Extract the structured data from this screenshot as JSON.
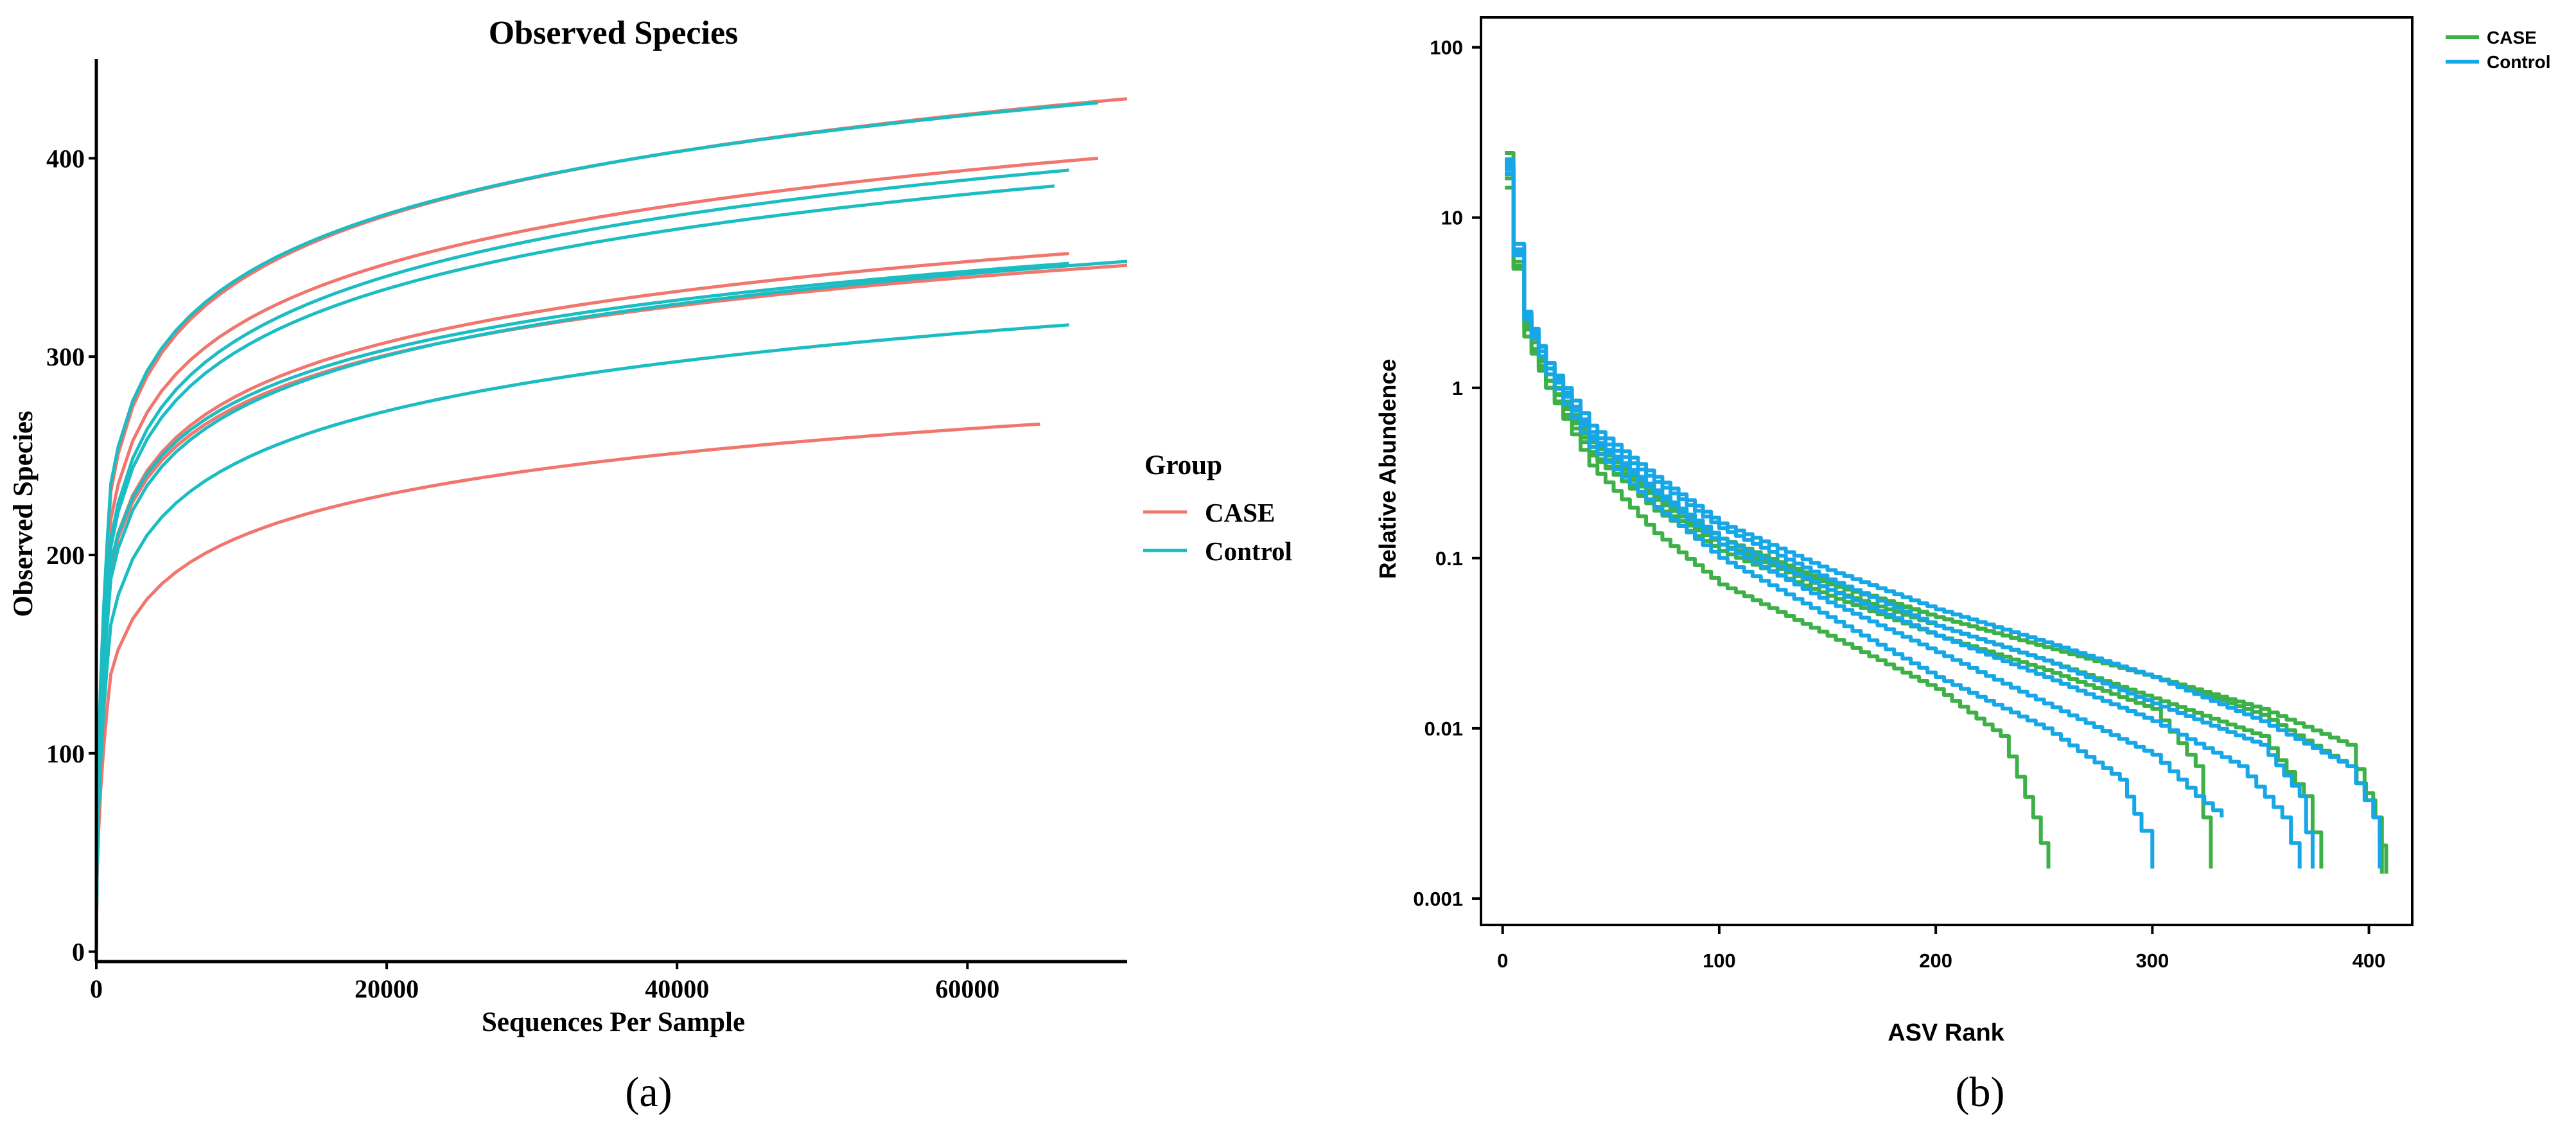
{
  "colors": {
    "case_a": "#F0766E",
    "control_a": "#1CBDC2",
    "case_b": "#3DB048",
    "control_b": "#17A7E6",
    "axis": "#000000"
  },
  "panel_labels": {
    "a": "(a)",
    "b": "(b)"
  },
  "chart_data": [
    {
      "id": "a",
      "type": "line",
      "title": "Observed Species",
      "xlabel": "Sequences Per Sample",
      "ylabel": "Observed Species",
      "xlim": [
        0,
        71000
      ],
      "ylim": [
        -5,
        450
      ],
      "xticks": [
        0,
        20000,
        40000,
        60000
      ],
      "xtick_labels": [
        "0",
        "20000",
        "40000",
        "60000"
      ],
      "yticks": [
        0,
        100,
        200,
        300,
        400
      ],
      "ytick_labels": [
        "0",
        "100",
        "200",
        "300",
        "400"
      ],
      "legend": {
        "title": "Group",
        "position": "right",
        "entries": [
          "CASE",
          "Control"
        ]
      },
      "series": [
        {
          "name": "CASE",
          "final_x": 71000,
          "final_y": 430,
          "y_at_1000": 232
        },
        {
          "name": "CASE",
          "final_x": 69000,
          "final_y": 400,
          "y_at_1000": 218
        },
        {
          "name": "CASE",
          "final_x": 67000,
          "final_y": 352,
          "y_at_1000": 196
        },
        {
          "name": "CASE",
          "final_x": 71000,
          "final_y": 346,
          "y_at_1000": 194
        },
        {
          "name": "CASE",
          "final_x": 65000,
          "final_y": 266,
          "y_at_1000": 140
        },
        {
          "name": "Control",
          "final_x": 69000,
          "final_y": 428,
          "y_at_1000": 236
        },
        {
          "name": "Control",
          "final_x": 67000,
          "final_y": 394,
          "y_at_1000": 208
        },
        {
          "name": "Control",
          "final_x": 66000,
          "final_y": 386,
          "y_at_1000": 204
        },
        {
          "name": "Control",
          "final_x": 67000,
          "final_y": 347,
          "y_at_1000": 196
        },
        {
          "name": "Control",
          "final_x": 71000,
          "final_y": 348,
          "y_at_1000": 188
        },
        {
          "name": "Control",
          "final_x": 67000,
          "final_y": 316,
          "y_at_1000": 165
        }
      ]
    },
    {
      "id": "b",
      "type": "line",
      "title": "",
      "xlabel": "ASV Rank",
      "ylabel": "Relative Abundence",
      "yscale": "log",
      "xlim": [
        -10,
        420
      ],
      "ylim": [
        0.0007,
        150
      ],
      "xticks": [
        0,
        100,
        200,
        300,
        400
      ],
      "xtick_labels": [
        "0",
        "100",
        "200",
        "300",
        "400"
      ],
      "yticks": [
        0.001,
        0.01,
        0.1,
        1,
        10,
        100
      ],
      "ytick_labels": [
        "0.001",
        "0.01",
        "0.1",
        "1",
        "10",
        "100"
      ],
      "legend": {
        "title": "",
        "position": "top-right",
        "entries": [
          "CASE",
          "Control"
        ]
      },
      "series": [
        {
          "name": "CASE",
          "points": [
            [
              1,
              24
            ],
            [
              5,
              6
            ],
            [
              10,
              2.2
            ],
            [
              20,
              1.0
            ],
            [
              40,
              0.35
            ],
            [
              70,
              0.14
            ],
            [
              100,
              0.07
            ],
            [
              150,
              0.035
            ],
            [
              200,
              0.017
            ],
            [
              230,
              0.009
            ],
            [
              245,
              0.003
            ],
            [
              252,
              0.0015
            ]
          ]
        },
        {
          "name": "CASE",
          "points": [
            [
              1,
              20
            ],
            [
              5,
              5
            ],
            [
              10,
              2.0
            ],
            [
              20,
              1.1
            ],
            [
              40,
              0.42
            ],
            [
              70,
              0.19
            ],
            [
              100,
              0.11
            ],
            [
              150,
              0.06
            ],
            [
              200,
              0.035
            ],
            [
              250,
              0.022
            ],
            [
              300,
              0.013
            ],
            [
              320,
              0.006
            ],
            [
              327,
              0.0015
            ]
          ]
        },
        {
          "name": "CASE",
          "points": [
            [
              1,
              18
            ],
            [
              5,
              5.5
            ],
            [
              10,
              2.4
            ],
            [
              20,
              1.1
            ],
            [
              40,
              0.45
            ],
            [
              70,
              0.22
            ],
            [
              100,
              0.12
            ],
            [
              150,
              0.065
            ],
            [
              200,
              0.04
            ],
            [
              250,
              0.025
            ],
            [
              300,
              0.015
            ],
            [
              350,
              0.009
            ],
            [
              370,
              0.004
            ],
            [
              378,
              0.0015
            ]
          ]
        },
        {
          "name": "CASE",
          "points": [
            [
              1,
              17
            ],
            [
              5,
              5.2
            ],
            [
              10,
              2.3
            ],
            [
              20,
              1.2
            ],
            [
              40,
              0.48
            ],
            [
              70,
              0.23
            ],
            [
              100,
              0.13
            ],
            [
              150,
              0.072
            ],
            [
              200,
              0.045
            ],
            [
              250,
              0.03
            ],
            [
              300,
              0.02
            ],
            [
              350,
              0.012
            ],
            [
              390,
              0.006
            ],
            [
              403,
              0.003
            ],
            [
              406,
              0.0014
            ]
          ]
        },
        {
          "name": "CASE",
          "points": [
            [
              1,
              15
            ],
            [
              5,
              5.0
            ],
            [
              10,
              2.0
            ],
            [
              20,
              1.0
            ],
            [
              40,
              0.4
            ],
            [
              70,
              0.2
            ],
            [
              100,
              0.12
            ],
            [
              150,
              0.07
            ],
            [
              200,
              0.045
            ],
            [
              250,
              0.03
            ],
            [
              300,
              0.02
            ],
            [
              350,
              0.013
            ],
            [
              390,
              0.008
            ],
            [
              402,
              0.003
            ],
            [
              408,
              0.0014
            ]
          ]
        },
        {
          "name": "Control",
          "points": [
            [
              1,
              19
            ],
            [
              5,
              6.0
            ],
            [
              10,
              2.5
            ],
            [
              20,
              1.2
            ],
            [
              40,
              0.45
            ],
            [
              70,
              0.2
            ],
            [
              100,
              0.1
            ],
            [
              150,
              0.045
            ],
            [
              200,
              0.02
            ],
            [
              250,
              0.01
            ],
            [
              285,
              0.005
            ],
            [
              295,
              0.0025
            ],
            [
              300,
              0.0015
            ]
          ]
        },
        {
          "name": "Control",
          "points": [
            [
              1,
              21
            ],
            [
              5,
              6.5
            ],
            [
              10,
              2.6
            ],
            [
              20,
              1.3
            ],
            [
              40,
              0.5
            ],
            [
              70,
              0.24
            ],
            [
              100,
              0.12
            ],
            [
              150,
              0.055
            ],
            [
              200,
              0.028
            ],
            [
              250,
              0.014
            ],
            [
              300,
              0.007
            ],
            [
              320,
              0.004
            ],
            [
              332,
              0.003
            ]
          ]
        },
        {
          "name": "Control",
          "points": [
            [
              1,
              22
            ],
            [
              5,
              7.0
            ],
            [
              10,
              2.8
            ],
            [
              20,
              1.4
            ],
            [
              40,
              0.52
            ],
            [
              70,
              0.25
            ],
            [
              100,
              0.13
            ],
            [
              150,
              0.065
            ],
            [
              200,
              0.035
            ],
            [
              250,
              0.02
            ],
            [
              300,
              0.011
            ],
            [
              340,
              0.006
            ],
            [
              360,
              0.003
            ],
            [
              368,
              0.0015
            ]
          ]
        },
        {
          "name": "Control",
          "points": [
            [
              1,
              20
            ],
            [
              5,
              6.2
            ],
            [
              10,
              2.6
            ],
            [
              20,
              1.3
            ],
            [
              40,
              0.55
            ],
            [
              70,
              0.28
            ],
            [
              100,
              0.15
            ],
            [
              150,
              0.075
            ],
            [
              200,
              0.04
            ],
            [
              250,
              0.025
            ],
            [
              300,
              0.014
            ],
            [
              350,
              0.008
            ],
            [
              368,
              0.004
            ],
            [
              374,
              0.0015
            ]
          ]
        },
        {
          "name": "Control",
          "points": [
            [
              1,
              18
            ],
            [
              5,
              6.0
            ],
            [
              10,
              2.7
            ],
            [
              20,
              1.4
            ],
            [
              40,
              0.6
            ],
            [
              70,
              0.3
            ],
            [
              100,
              0.16
            ],
            [
              150,
              0.085
            ],
            [
              200,
              0.05
            ],
            [
              250,
              0.032
            ],
            [
              300,
              0.02
            ],
            [
              350,
              0.011
            ],
            [
              390,
              0.006
            ],
            [
              402,
              0.003
            ],
            [
              405,
              0.0015
            ]
          ]
        }
      ]
    }
  ]
}
